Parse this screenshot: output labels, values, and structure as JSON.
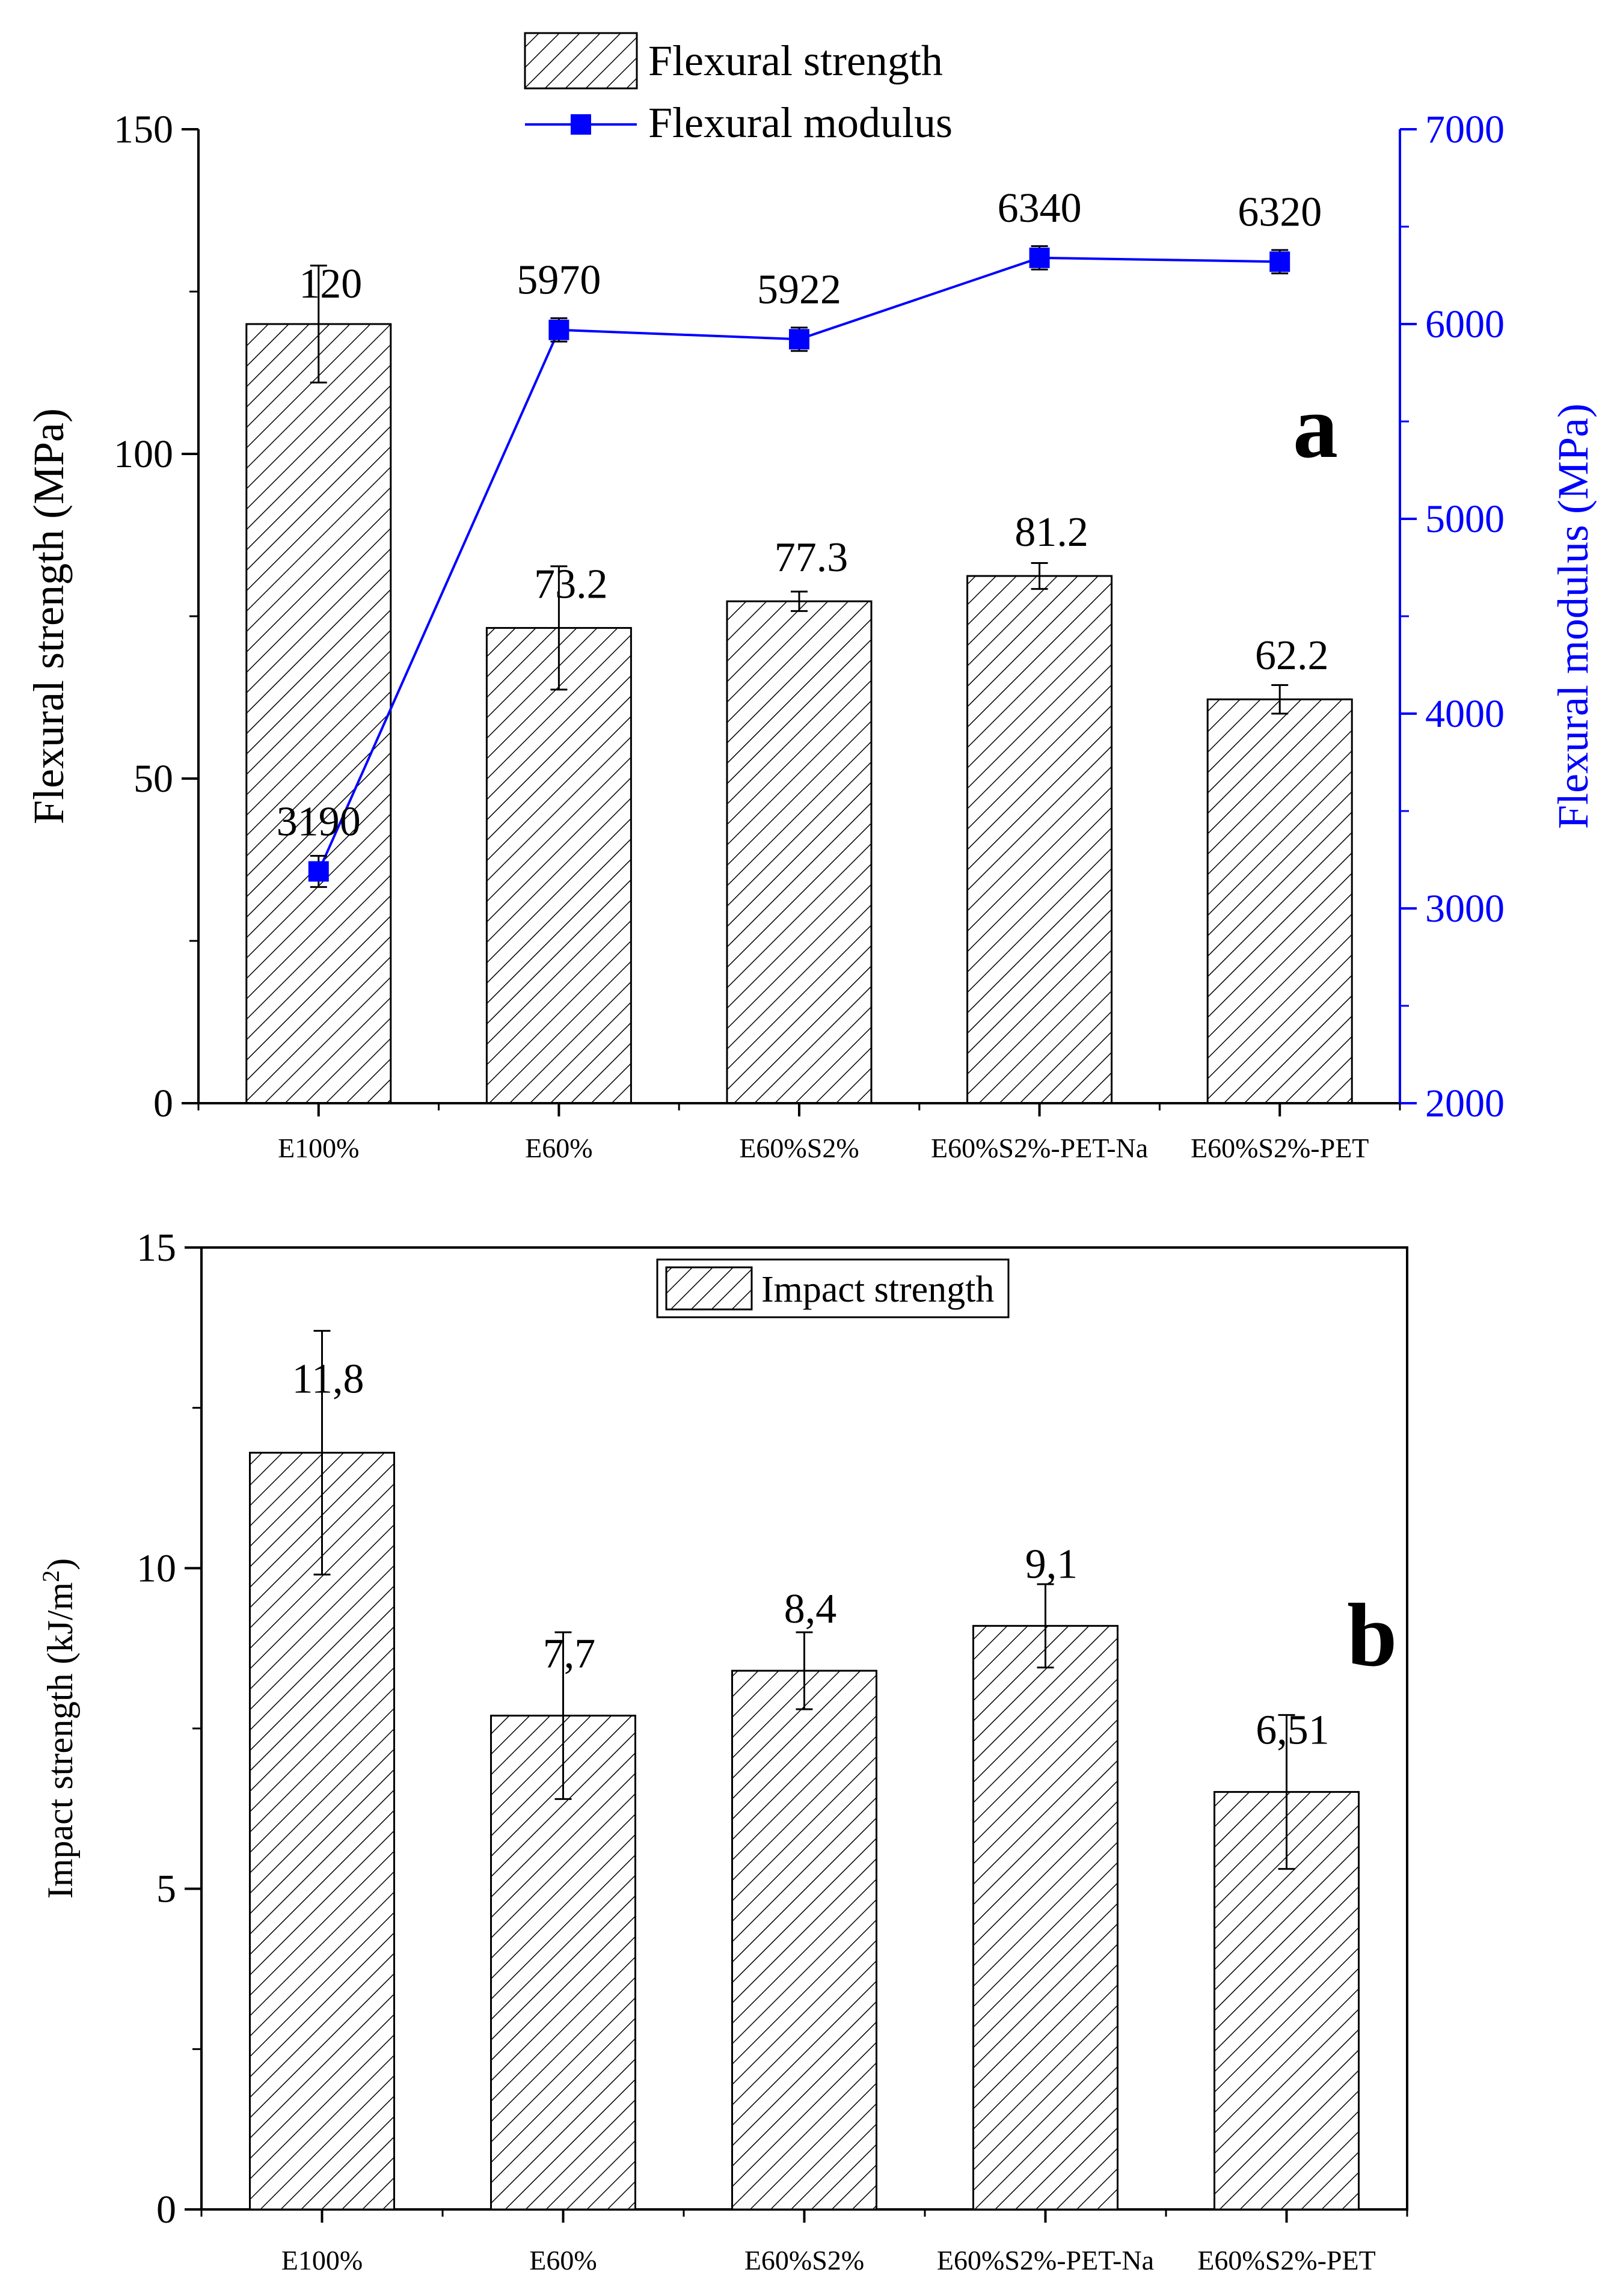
{
  "colors": {
    "axis": "#000000",
    "modulus": "#0000ff",
    "bar_fill": "#ffffff",
    "hatch": "#000000"
  },
  "chart_data": [
    {
      "panel": "a",
      "type": "bar",
      "categories": [
        "E100%",
        "E60%",
        "E60%S2%",
        "E60%S2%-PET-Na",
        "E60%S2%-PET"
      ],
      "series": [
        {
          "name": "Flexural strength",
          "type": "bar",
          "axis": "left",
          "values": [
            120,
            73.2,
            77.3,
            81.2,
            62.2
          ],
          "value_labels": [
            "120",
            "73.2",
            "77.3",
            "81.2",
            "62.2"
          ],
          "errors": [
            9,
            9.5,
            1.5,
            2,
            2.2
          ]
        },
        {
          "name": "Flexural modulus",
          "type": "line",
          "axis": "right",
          "values": [
            3190,
            5970,
            5922,
            6340,
            6320
          ],
          "value_labels": [
            "3190",
            "5970",
            "5922",
            "6340",
            "6320"
          ],
          "errors": [
            80,
            60,
            60,
            60,
            60
          ]
        }
      ],
      "ylabel": "Flexural strength (MPa)",
      "ylabel_right": "Flexural modulus (MPa)",
      "ylim": [
        0,
        150
      ],
      "ylim_right": [
        2000,
        7000
      ],
      "yticks": [
        0,
        50,
        100,
        150
      ],
      "yticks_right": [
        2000,
        3000,
        4000,
        5000,
        6000,
        7000
      ],
      "legend": [
        "Flexural strength",
        "Flexural modulus"
      ],
      "legend_position": "top-center",
      "panel_label": "a"
    },
    {
      "panel": "b",
      "type": "bar",
      "categories": [
        "E100%",
        "E60%",
        "E60%S2%",
        "E60%S2%-PET-Na",
        "E60%S2%-PET"
      ],
      "series": [
        {
          "name": "Impact strength",
          "values": [
            11.8,
            7.7,
            8.4,
            9.1,
            6.51
          ],
          "value_labels": [
            "11,8",
            "7,7",
            "8,4",
            "9,1",
            "6,51"
          ],
          "errors": [
            1.9,
            1.3,
            0.6,
            0.65,
            1.2
          ]
        }
      ],
      "ylabel": "Impact strength (kJ/m",
      "ylabel_sup": "2",
      "ylabel_close": ")",
      "ylim": [
        0,
        15
      ],
      "yticks": [
        0,
        5,
        10,
        15
      ],
      "legend": [
        "Impact strength"
      ],
      "legend_position": "top-center",
      "panel_label": "b"
    }
  ]
}
